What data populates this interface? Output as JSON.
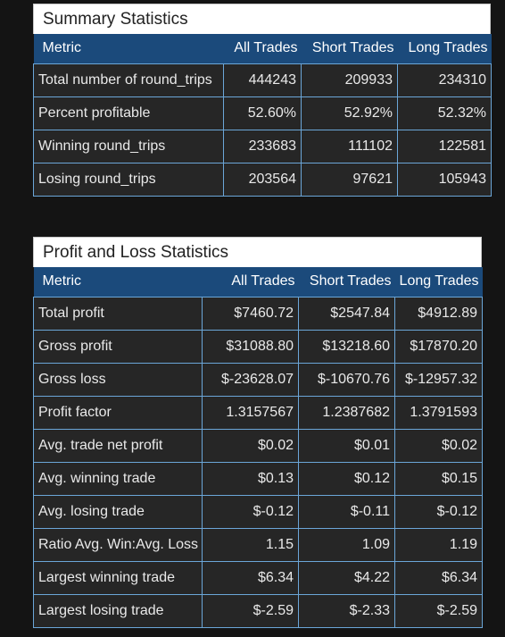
{
  "summary": {
    "title": "Summary Statistics",
    "columns": [
      "Metric",
      "All Trades",
      "Short Trades",
      "Long Trades"
    ],
    "rows": [
      [
        "Total number of round_trips",
        "444243",
        "209933",
        "234310"
      ],
      [
        "Percent profitable",
        "52.60%",
        "52.92%",
        "52.32%"
      ],
      [
        "Winning round_trips",
        "233683",
        "111102",
        "122581"
      ],
      [
        "Losing round_trips",
        "203564",
        "97621",
        "105943"
      ]
    ]
  },
  "pnl": {
    "title": "Profit and Loss Statistics",
    "columns": [
      "Metric",
      "All Trades",
      "Short Trades",
      "Long Trades"
    ],
    "rows": [
      [
        "Total profit",
        "$7460.72",
        "$2547.84",
        "$4912.89"
      ],
      [
        "Gross profit",
        "$31088.80",
        "$13218.60",
        "$17870.20"
      ],
      [
        "Gross loss",
        "$-23628.07",
        "$-10670.76",
        "$-12957.32"
      ],
      [
        "Profit factor",
        "1.3157567",
        "1.2387682",
        "1.3791593"
      ],
      [
        "Avg. trade net profit",
        "$0.02",
        "$0.01",
        "$0.02"
      ],
      [
        "Avg. winning trade",
        "$0.13",
        "$0.12",
        "$0.15"
      ],
      [
        "Avg. losing trade",
        "$-0.12",
        "$-0.11",
        "$-0.12"
      ],
      [
        "Ratio Avg. Win:Avg. Loss",
        "1.15",
        "1.09",
        "1.19"
      ],
      [
        "Largest winning trade",
        "$6.34",
        "$4.22",
        "$6.34"
      ],
      [
        "Largest losing trade",
        "$-2.59",
        "$-2.33",
        "$-2.59"
      ]
    ]
  },
  "colors": {
    "header_bg": "#1b4a7b",
    "cell_bg": "#262626",
    "cell_border": "#6ba6d8",
    "page_bg": "#141414",
    "title_bg": "#ffffff"
  }
}
